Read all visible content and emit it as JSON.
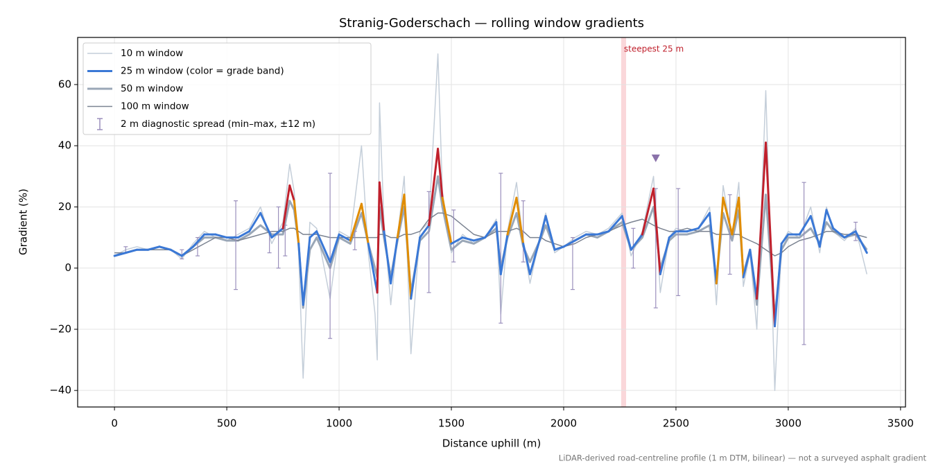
{
  "chart_data": {
    "type": "line",
    "title": "Stranig-Goderschach — rolling window gradients",
    "x_label": "Distance uphill (m)",
    "y_label": "Gradient (%)",
    "footnote": "LiDAR-derived road-centreline profile (1 m DTM, bilinear) — not a surveyed asphalt gradient",
    "xlim": [
      -164,
      3522
    ],
    "ylim": [
      -45.4,
      75.4
    ],
    "xticks": [
      0,
      500,
      1000,
      1500,
      2000,
      2500,
      3000,
      3500
    ],
    "yticks": [
      {
        "value": -40,
        "label": "−40"
      },
      {
        "value": -20,
        "label": "−20"
      },
      0,
      20,
      40,
      60
    ],
    "grid": true,
    "legend": "upper left",
    "x": [
      0,
      50,
      100,
      150,
      200,
      250,
      300,
      350,
      400,
      450,
      500,
      550,
      600,
      650,
      700,
      750,
      780,
      800,
      820,
      840,
      870,
      900,
      960,
      1000,
      1050,
      1100,
      1130,
      1160,
      1170,
      1180,
      1200,
      1230,
      1260,
      1290,
      1320,
      1360,
      1400,
      1440,
      1460,
      1500,
      1550,
      1600,
      1650,
      1700,
      1720,
      1750,
      1790,
      1820,
      1850,
      1900,
      1920,
      1960,
      2000,
      2050,
      2100,
      2150,
      2200,
      2260,
      2300,
      2350,
      2400,
      2430,
      2470,
      2500,
      2550,
      2600,
      2650,
      2680,
      2710,
      2750,
      2780,
      2800,
      2830,
      2860,
      2900,
      2940,
      2970,
      3000,
      3050,
      3100,
      3140,
      3170,
      3200,
      3250,
      3300,
      3350
    ],
    "series": [
      {
        "name": "10 m window",
        "color": "#c4ced9",
        "values": [
          4,
          6,
          7,
          6,
          7,
          6,
          3,
          8,
          12,
          10,
          9,
          11,
          13,
          20,
          8,
          15,
          34,
          25,
          5,
          -36,
          15,
          13,
          -10,
          12,
          10,
          40,
          5,
          -15,
          -30,
          54,
          15,
          -12,
          10,
          30,
          -28,
          12,
          15,
          70,
          25,
          5,
          11,
          8,
          10,
          16,
          -15,
          12,
          28,
          8,
          -5,
          12,
          18,
          5,
          7,
          10,
          12,
          11,
          13,
          18,
          4,
          12,
          30,
          -8,
          10,
          13,
          12,
          13,
          20,
          -12,
          27,
          10,
          28,
          -6,
          5,
          -20,
          58,
          -40,
          8,
          12,
          10,
          20,
          5,
          20,
          12,
          9,
          13,
          -2
        ]
      },
      {
        "name": "25 m window (color = grade band)",
        "color": "#3a78d6",
        "grade_bands": {
          "thresholds": [
            20,
            25
          ],
          "colors": [
            "#3a78d6",
            "#e08c00",
            "#c0202c"
          ]
        },
        "values": [
          4,
          5,
          6,
          6,
          7,
          6,
          4,
          7,
          11,
          11,
          10,
          10,
          12,
          18,
          10,
          13,
          27,
          22,
          8,
          -12,
          10,
          12,
          2,
          11,
          9,
          21,
          8,
          -4,
          -8,
          28,
          12,
          -5,
          10,
          24,
          -10,
          10,
          14,
          39,
          23,
          8,
          10,
          9,
          10,
          15,
          -2,
          11,
          23,
          8,
          -2,
          11,
          17,
          6,
          7,
          9,
          11,
          11,
          12,
          17,
          6,
          11,
          26,
          -2,
          10,
          12,
          12,
          13,
          18,
          -5,
          23,
          11,
          23,
          -3,
          6,
          -10,
          41,
          -19,
          8,
          11,
          11,
          17,
          7,
          19,
          13,
          10,
          12,
          5
        ]
      },
      {
        "name": "50 m window",
        "color": "#9aa7b7",
        "values": [
          4,
          5,
          6,
          6,
          7,
          6,
          4,
          7,
          10,
          10,
          9,
          9,
          11,
          14,
          11,
          11,
          22,
          19,
          8,
          -13,
          6,
          10,
          0,
          10,
          8,
          18,
          8,
          0,
          -3,
          20,
          10,
          -3,
          9,
          20,
          -8,
          9,
          12,
          30,
          20,
          6,
          9,
          8,
          10,
          13,
          0,
          10,
          18,
          7,
          2,
          10,
          14,
          6,
          7,
          9,
          11,
          10,
          12,
          15,
          6,
          10,
          20,
          0,
          9,
          11,
          11,
          12,
          14,
          -4,
          18,
          9,
          19,
          -2,
          6,
          -12,
          24,
          -16,
          6,
          10,
          10,
          13,
          8,
          15,
          12,
          10,
          11,
          6
        ]
      },
      {
        "name": "100 m window",
        "color": "#7b8391",
        "values": [
          5,
          5,
          6,
          6,
          6,
          6,
          4,
          6,
          8,
          10,
          10,
          9,
          10,
          11,
          12,
          12,
          13,
          13,
          12,
          11,
          11,
          11,
          10,
          10,
          10,
          10,
          10,
          10,
          10,
          11,
          11,
          10,
          10,
          11,
          11,
          12,
          16,
          18,
          18,
          17,
          14,
          11,
          10,
          12,
          12,
          12,
          13,
          12,
          10,
          10,
          9,
          8,
          7,
          8,
          10,
          11,
          12,
          14,
          15,
          16,
          14,
          13,
          12,
          12,
          13,
          12,
          12,
          11,
          11,
          11,
          11,
          10,
          9,
          8,
          6,
          4,
          5,
          7,
          9,
          10,
          11,
          12,
          12,
          11,
          11,
          10
        ]
      }
    ],
    "error_bars": {
      "name": "2 m diagnostic spread (min–max, ±12 m)",
      "color": "#9a8fbc",
      "x": [
        50,
        300,
        370,
        540,
        690,
        730,
        760,
        960,
        1070,
        1400,
        1510,
        1720,
        1820,
        2040,
        2310,
        2410,
        2510,
        2740,
        3070,
        3300
      ],
      "min": [
        5,
        3,
        4,
        -7,
        5,
        0,
        4,
        -23,
        6,
        -8,
        2,
        -18,
        2,
        -7,
        0,
        -13,
        -9,
        -2,
        -25,
        9
      ],
      "max": [
        7,
        6,
        10,
        22,
        12,
        20,
        14,
        31,
        12,
        25,
        19,
        31,
        22,
        10,
        13,
        26,
        26,
        24,
        28,
        15
      ]
    },
    "marker": {
      "x": 2410,
      "y": 36,
      "color": "#8a72aa"
    },
    "highlight": {
      "label": "steepest 25 m",
      "x": [
        2256,
        2278
      ],
      "color": "#f4a6ad",
      "label_color": "#c0202c"
    }
  }
}
